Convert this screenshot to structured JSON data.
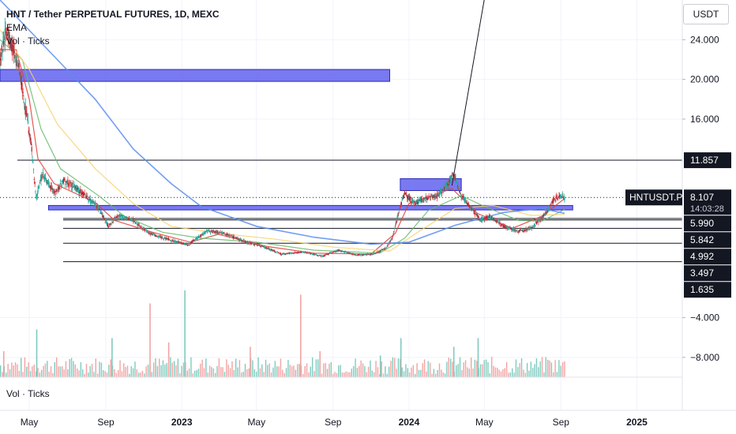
{
  "legend": {
    "title": "HNT / Tether PERPETUAL FUTURES, 1D, MEXC",
    "line2": "EMA",
    "line3": "Vol · Ticks"
  },
  "volume_pane": {
    "label": "Vol · Ticks"
  },
  "price_scale": {
    "currency": "USDT"
  },
  "colors": {
    "candle_up": "#26a69a",
    "candle_down": "#e04848",
    "candle_body": "#a0263a",
    "ema_fast": "#e53935",
    "ema_green": "#66bb6a",
    "ema_yellow": "#f7d26b",
    "ema_blue": "#5b8def",
    "zone_fill": "#6a6af0",
    "zone_border": "#2a2ab8",
    "vol_up": "#7fcbbf",
    "vol_down": "#f2a3a3"
  },
  "chart_data": {
    "type": "candlestick",
    "symbol": "HNT / Tether PERPETUAL FUTURES",
    "timeframe": "1D",
    "exchange": "MEXC",
    "x_axis": {
      "tick_labels": [
        "May",
        "Sep",
        "2023",
        "May",
        "Sep",
        "2024",
        "May",
        "Sep",
        "2025"
      ],
      "tick_dates": [
        "2022-05-01",
        "2022-09-01",
        "2023-01-01",
        "2023-05-01",
        "2023-09-01",
        "2024-01-01",
        "2024-05-01",
        "2024-09-01",
        "2025-01-01"
      ],
      "range": [
        "2022-03-15",
        "2025-03-15"
      ]
    },
    "y_axis": {
      "tick_labels": [
        "24.000",
        "20.000",
        "16.000",
        "−4.000",
        "−8.000"
      ],
      "ticks": [
        24,
        20,
        16,
        -4,
        -8
      ],
      "range": [
        -10,
        28
      ]
    },
    "price_label": {
      "name": "HNTUSDT.P",
      "value": "8.107",
      "countdown": "14:03:28",
      "price": 8.107
    },
    "horizontal_levels": [
      {
        "label": "11.857",
        "price": 11.857
      },
      {
        "label": "5.990",
        "price": 5.99
      },
      {
        "label": "5.842",
        "price": 5.842
      },
      {
        "label": "4.992",
        "price": 4.992
      },
      {
        "label": "3.497",
        "price": 3.497
      },
      {
        "label": "1.635",
        "price": 1.635
      }
    ],
    "zones": [
      {
        "start": "2022-03-15",
        "end": "2023-12-01",
        "low": 19.8,
        "high": 21.0
      },
      {
        "start": "2022-06-01",
        "end": "2024-09-20",
        "low": 6.85,
        "high": 7.3
      },
      {
        "start": "2023-12-18",
        "end": "2024-03-25",
        "low": 8.8,
        "high": 10.0
      }
    ],
    "trendline": {
      "from": {
        "date": "2024-03-10",
        "price": 9.3
      },
      "to": {
        "date": "2024-06-03",
        "price": 40
      }
    },
    "price_path": [
      {
        "date": "2022-03-15",
        "price": 22.0
      },
      {
        "date": "2022-03-25",
        "price": 25.0
      },
      {
        "date": "2022-04-05",
        "price": 23.0
      },
      {
        "date": "2022-04-15",
        "price": 21.0
      },
      {
        "date": "2022-04-25",
        "price": 17.0
      },
      {
        "date": "2022-05-05",
        "price": 13.0
      },
      {
        "date": "2022-05-12",
        "price": 8.0
      },
      {
        "date": "2022-05-22",
        "price": 10.5
      },
      {
        "date": "2022-06-01",
        "price": 9.5
      },
      {
        "date": "2022-06-12",
        "price": 8.5
      },
      {
        "date": "2022-06-25",
        "price": 9.8
      },
      {
        "date": "2022-07-10",
        "price": 9.3
      },
      {
        "date": "2022-08-01",
        "price": 8.2
      },
      {
        "date": "2022-08-20",
        "price": 7.0
      },
      {
        "date": "2022-09-05",
        "price": 5.2
      },
      {
        "date": "2022-09-20",
        "price": 6.3
      },
      {
        "date": "2022-10-15",
        "price": 5.8
      },
      {
        "date": "2022-11-10",
        "price": 4.5
      },
      {
        "date": "2022-12-15",
        "price": 3.8
      },
      {
        "date": "2023-01-10",
        "price": 3.3
      },
      {
        "date": "2023-02-10",
        "price": 4.7
      },
      {
        "date": "2023-03-10",
        "price": 4.5
      },
      {
        "date": "2023-04-10",
        "price": 3.7
      },
      {
        "date": "2023-05-10",
        "price": 3.2
      },
      {
        "date": "2023-06-10",
        "price": 2.4
      },
      {
        "date": "2023-07-15",
        "price": 2.6
      },
      {
        "date": "2023-08-15",
        "price": 2.2
      },
      {
        "date": "2023-09-10",
        "price": 2.8
      },
      {
        "date": "2023-10-10",
        "price": 2.3
      },
      {
        "date": "2023-11-05",
        "price": 2.4
      },
      {
        "date": "2023-11-25",
        "price": 3.0
      },
      {
        "date": "2023-12-05",
        "price": 4.0
      },
      {
        "date": "2023-12-15",
        "price": 6.5
      },
      {
        "date": "2023-12-25",
        "price": 8.5
      },
      {
        "date": "2024-01-10",
        "price": 7.5
      },
      {
        "date": "2024-01-25",
        "price": 8.0
      },
      {
        "date": "2024-02-15",
        "price": 8.2
      },
      {
        "date": "2024-03-05",
        "price": 9.5
      },
      {
        "date": "2024-03-12",
        "price": 10.5
      },
      {
        "date": "2024-03-25",
        "price": 8.3
      },
      {
        "date": "2024-04-10",
        "price": 7.0
      },
      {
        "date": "2024-04-25",
        "price": 5.8
      },
      {
        "date": "2024-05-10",
        "price": 6.2
      },
      {
        "date": "2024-06-01",
        "price": 5.2
      },
      {
        "date": "2024-06-25",
        "price": 4.7
      },
      {
        "date": "2024-07-15",
        "price": 5.0
      },
      {
        "date": "2024-07-30",
        "price": 5.9
      },
      {
        "date": "2024-08-10",
        "price": 6.7
      },
      {
        "date": "2024-08-20",
        "price": 7.8
      },
      {
        "date": "2024-09-01",
        "price": 8.3
      },
      {
        "date": "2024-09-07",
        "price": 8.1
      }
    ],
    "ema_series": [
      {
        "name": "EMA red",
        "points": [
          {
            "date": "2022-03-15",
            "price": 23
          },
          {
            "date": "2022-04-10",
            "price": 23
          },
          {
            "date": "2022-05-01",
            "price": 18
          },
          {
            "date": "2022-05-15",
            "price": 12
          },
          {
            "date": "2022-06-10",
            "price": 9.5
          },
          {
            "date": "2022-08-15",
            "price": 7.6
          },
          {
            "date": "2022-09-15",
            "price": 5.8
          },
          {
            "date": "2022-11-15",
            "price": 4.6
          },
          {
            "date": "2023-01-15",
            "price": 3.6
          },
          {
            "date": "2023-03-01",
            "price": 4.4
          },
          {
            "date": "2023-05-15",
            "price": 3.2
          },
          {
            "date": "2023-08-01",
            "price": 2.5
          },
          {
            "date": "2023-11-01",
            "price": 2.4
          },
          {
            "date": "2023-12-10",
            "price": 4.5
          },
          {
            "date": "2024-01-01",
            "price": 7.5
          },
          {
            "date": "2024-03-10",
            "price": 9.0
          },
          {
            "date": "2024-04-20",
            "price": 6.5
          },
          {
            "date": "2024-06-15",
            "price": 5.0
          },
          {
            "date": "2024-08-01",
            "price": 6.2
          },
          {
            "date": "2024-09-07",
            "price": 8.0
          }
        ]
      },
      {
        "name": "EMA green",
        "points": [
          {
            "date": "2022-03-15",
            "price": 24
          },
          {
            "date": "2022-04-20",
            "price": 22
          },
          {
            "date": "2022-05-20",
            "price": 15
          },
          {
            "date": "2022-06-20",
            "price": 11
          },
          {
            "date": "2022-08-20",
            "price": 8.3
          },
          {
            "date": "2022-10-01",
            "price": 6.2
          },
          {
            "date": "2022-12-01",
            "price": 4.6
          },
          {
            "date": "2023-02-01",
            "price": 4.0
          },
          {
            "date": "2023-05-01",
            "price": 3.6
          },
          {
            "date": "2023-08-01",
            "price": 2.8
          },
          {
            "date": "2023-11-15",
            "price": 2.5
          },
          {
            "date": "2023-12-25",
            "price": 4.0
          },
          {
            "date": "2024-02-01",
            "price": 6.8
          },
          {
            "date": "2024-03-25",
            "price": 8.3
          },
          {
            "date": "2024-05-01",
            "price": 7.2
          },
          {
            "date": "2024-06-25",
            "price": 5.8
          },
          {
            "date": "2024-08-01",
            "price": 5.7
          },
          {
            "date": "2024-09-07",
            "price": 6.9
          }
        ]
      },
      {
        "name": "EMA yellow",
        "points": [
          {
            "date": "2022-03-15",
            "price": 25
          },
          {
            "date": "2022-05-01",
            "price": 21
          },
          {
            "date": "2022-06-15",
            "price": 15.5
          },
          {
            "date": "2022-08-15",
            "price": 11
          },
          {
            "date": "2022-10-15",
            "price": 7.5
          },
          {
            "date": "2022-12-15",
            "price": 5.2
          },
          {
            "date": "2023-03-01",
            "price": 4.5
          },
          {
            "date": "2023-06-01",
            "price": 3.9
          },
          {
            "date": "2023-09-01",
            "price": 3.1
          },
          {
            "date": "2023-12-01",
            "price": 2.7
          },
          {
            "date": "2024-01-15",
            "price": 4.6
          },
          {
            "date": "2024-03-15",
            "price": 7.0
          },
          {
            "date": "2024-05-15",
            "price": 7.3
          },
          {
            "date": "2024-07-15",
            "price": 6.3
          },
          {
            "date": "2024-09-07",
            "price": 6.4
          }
        ]
      },
      {
        "name": "EMA blue",
        "points": [
          {
            "date": "2022-03-15",
            "price": 28
          },
          {
            "date": "2022-04-15",
            "price": 26
          },
          {
            "date": "2022-06-15",
            "price": 22
          },
          {
            "date": "2022-08-15",
            "price": 18
          },
          {
            "date": "2022-10-15",
            "price": 13
          },
          {
            "date": "2022-12-15",
            "price": 9.5
          },
          {
            "date": "2023-02-01",
            "price": 7.2
          },
          {
            "date": "2023-05-01",
            "price": 5.2
          },
          {
            "date": "2023-08-01",
            "price": 4.1
          },
          {
            "date": "2023-11-01",
            "price": 3.4
          },
          {
            "date": "2024-01-01",
            "price": 3.6
          },
          {
            "date": "2024-03-15",
            "price": 5.3
          },
          {
            "date": "2024-06-01",
            "price": 6.6
          },
          {
            "date": "2024-08-01",
            "price": 7.0
          },
          {
            "date": "2024-09-07",
            "price": 6.5
          }
        ]
      }
    ],
    "volume_spikes": [
      {
        "date": "2022-03-20",
        "value": 0.3
      },
      {
        "date": "2022-05-12",
        "value": 0.55
      },
      {
        "date": "2022-09-10",
        "value": 0.45
      },
      {
        "date": "2022-11-10",
        "value": 0.85
      },
      {
        "date": "2022-12-10",
        "value": 0.4
      },
      {
        "date": "2023-01-05",
        "value": 1.0
      },
      {
        "date": "2023-04-20",
        "value": 0.35
      },
      {
        "date": "2023-07-10",
        "value": 0.95
      },
      {
        "date": "2023-08-10",
        "value": 0.3
      },
      {
        "date": "2023-11-15",
        "value": 0.25
      },
      {
        "date": "2023-12-18",
        "value": 0.45
      },
      {
        "date": "2024-03-12",
        "value": 0.35
      },
      {
        "date": "2024-04-20",
        "value": 0.45
      },
      {
        "date": "2024-08-10",
        "value": 0.2
      }
    ]
  }
}
